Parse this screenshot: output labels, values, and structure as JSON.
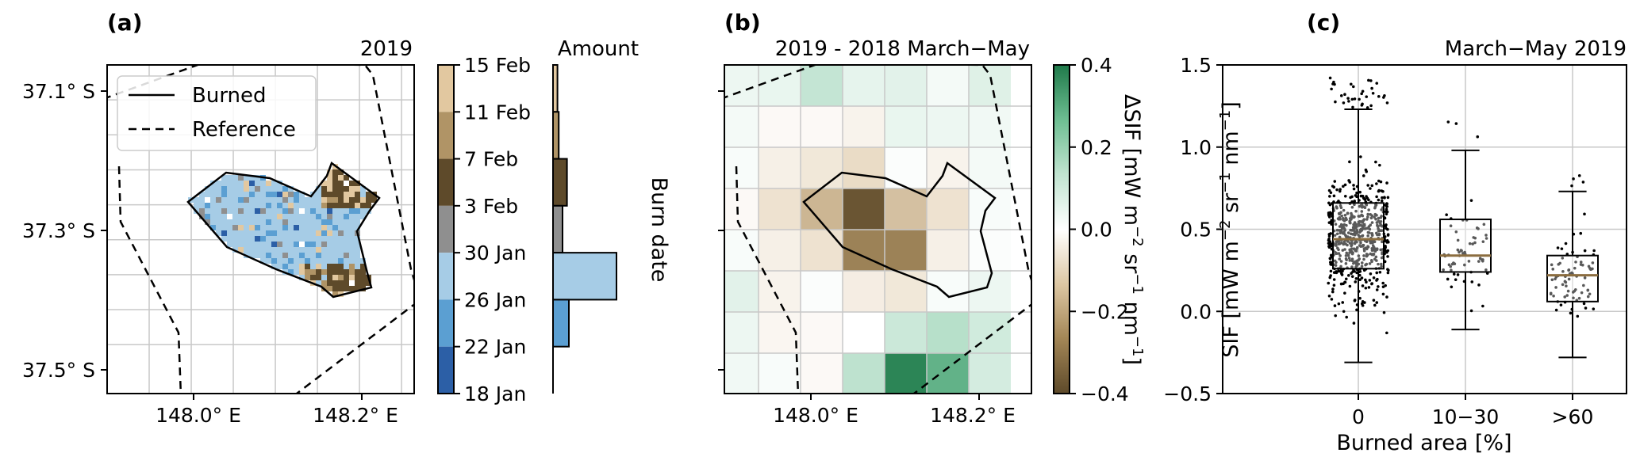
{
  "chart_data": [
    {
      "panel": "(a)",
      "type": "heatmap",
      "title": "2019",
      "xticks": [
        "148.0° E",
        "148.2° E"
      ],
      "yticks": [
        "37.1° S",
        "37.3° S",
        "37.5° S"
      ],
      "legend": {
        "placement": "top-left",
        "entries": [
          {
            "label": "Burned",
            "style": "solid"
          },
          {
            "label": "Reference",
            "style": "dashed"
          }
        ]
      },
      "grid": true,
      "colorbar": {
        "label": "Burn date",
        "ticks": [
          "15 Feb",
          "11 Feb",
          "7 Feb",
          "3 Feb",
          "30 Jan",
          "26 Jan",
          "22 Jan",
          "18 Jan"
        ],
        "colors": [
          "#e2c8a0",
          "#b09466",
          "#5e4a2a",
          "#8f8f8f",
          "#a6cce6",
          "#5b9fd2",
          "#2c5fa6"
        ]
      },
      "histogram": {
        "title": "Amount",
        "orientation": "horizontal",
        "bins": [
          "15 Feb-11 Feb",
          "11 Feb-7 Feb",
          "7 Feb-3 Feb",
          "3 Feb-30 Jan",
          "30 Jan-26 Jan",
          "26 Jan-22 Jan",
          "22 Jan-18 Jan"
        ],
        "relative_amount": [
          0.07,
          0.09,
          0.22,
          0.15,
          1.0,
          0.25,
          0.0
        ]
      }
    },
    {
      "panel": "(b)",
      "type": "heatmap",
      "title": "2019 - 2018 March−May",
      "xticks": [
        "148.0° E",
        "148.2° E"
      ],
      "grid": true,
      "rows": 8,
      "cols": 7,
      "values": [
        [
          0.05,
          0.06,
          0.15,
          0.07,
          0.08,
          0.03,
          0.09
        ],
        [
          0.03,
          -0.02,
          -0.02,
          -0.04,
          0.06,
          0.05,
          0.04
        ],
        [
          0.02,
          -0.05,
          -0.08,
          -0.12,
          0.01,
          -0.04,
          0.03
        ],
        [
          -0.02,
          -0.1,
          -0.2,
          -0.38,
          -0.18,
          -0.1,
          0.02
        ],
        [
          0.02,
          -0.05,
          -0.1,
          -0.3,
          -0.3,
          -0.05,
          0.01
        ],
        [
          0.08,
          -0.04,
          0.01,
          -0.06,
          -0.08,
          0.02,
          0.05
        ],
        [
          0.05,
          -0.03,
          -0.02,
          0.0,
          0.14,
          0.17,
          0.13
        ],
        [
          0.04,
          0.02,
          -0.02,
          0.16,
          0.38,
          0.3,
          0.12
        ]
      ],
      "colorbar": {
        "label": "ΔSIF [mW m",
        "label_sup1": "−2",
        "label_mid": " sr",
        "label_sup2": "−1",
        "label_mid2": " nm",
        "label_sup3": "−1",
        "label_end": "]",
        "ticks": [
          "0.4",
          "0.2",
          "0.0",
          "−0.2",
          "−0.4"
        ],
        "range": [
          -0.4,
          0.4
        ],
        "colors_low_to_high": [
          "#5e4a2a",
          "#b09466",
          "#e8d8c0",
          "#ffffff",
          "#cfeadc",
          "#78c49c",
          "#1f7a4a"
        ]
      }
    },
    {
      "panel": "(c)",
      "type": "box",
      "title": "March−May 2019",
      "xlabel": "Burned area [%]",
      "ylabel": "SIF [mW m",
      "ylabel_sup1": "−2",
      "ylabel_mid": " sr",
      "ylabel_sup2": "−1",
      "ylabel_mid2": " nm",
      "ylabel_sup3": "−1",
      "ylabel_end": "]",
      "categories": [
        "0",
        "10−30",
        ">60"
      ],
      "yticks": [
        "1.5",
        "1.0",
        "0.5",
        "0.0",
        "−0.5"
      ],
      "ylim": [
        -0.5,
        1.5
      ],
      "grid": true,
      "boxes": [
        {
          "min": -0.31,
          "q1": 0.26,
          "median": 0.44,
          "q3": 0.66,
          "max": 1.23,
          "n": 650
        },
        {
          "min": -0.11,
          "q1": 0.24,
          "median": 0.34,
          "q3": 0.56,
          "max": 0.98,
          "n": 60
        },
        {
          "min": -0.28,
          "q1": 0.06,
          "median": 0.22,
          "q3": 0.34,
          "max": 0.73,
          "n": 80
        }
      ],
      "median_color": "#8b6d3f"
    }
  ]
}
